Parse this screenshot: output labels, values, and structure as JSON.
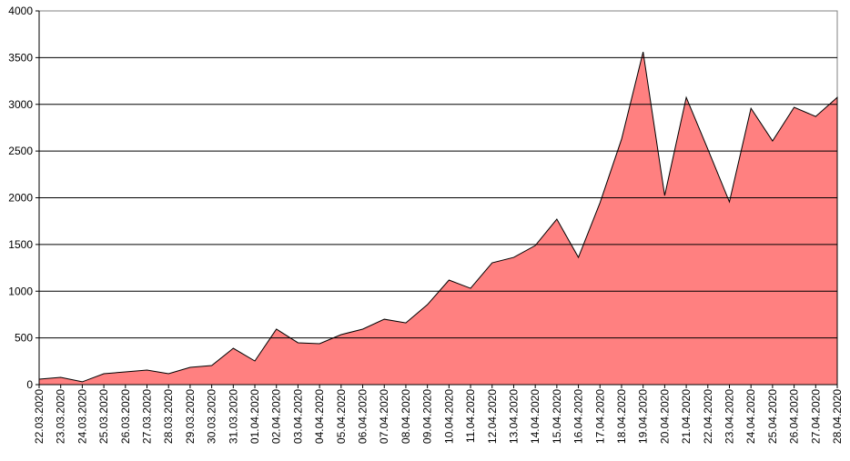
{
  "chart_data": {
    "type": "area",
    "categories": [
      "22.03.2020",
      "23.03.2020",
      "24.03.2020",
      "25.03.2020",
      "26.03.2020",
      "27.03.2020",
      "28.03.2020",
      "29.03.2020",
      "30.03.2020",
      "31.03.2020",
      "01.04.2020",
      "02.04.2020",
      "03.04.2020",
      "04.04.2020",
      "05.04.2020",
      "06.04.2020",
      "07.04.2020",
      "08.04.2020",
      "09.04.2020",
      "10.04.2020",
      "11.04.2020",
      "12.04.2020",
      "13.04.2020",
      "14.04.2020",
      "15.04.2020",
      "16.04.2020",
      "17.04.2020",
      "18.04.2020",
      "19.04.2020",
      "20.04.2020",
      "21.04.2020",
      "22.04.2020",
      "23.04.2020",
      "24.04.2020",
      "25.04.2020",
      "26.04.2020",
      "27.04.2020",
      "28.04.2020"
    ],
    "values": [
      58,
      78,
      30,
      117,
      136,
      156,
      117,
      185,
      204,
      389,
      253,
      594,
      448,
      438,
      535,
      594,
      700,
      661,
      856,
      1119,
      1031,
      1304,
      1362,
      1489,
      1771,
      1362,
      1946,
      2627,
      3561,
      2024,
      3074,
      2520,
      1956,
      2958,
      2608,
      2968,
      2870,
      3074
    ],
    "color": "#ff8080",
    "ylim": [
      0,
      4000
    ],
    "yticks": [
      0,
      500,
      1000,
      1500,
      2000,
      2500,
      3000,
      3500,
      4000
    ],
    "grid": true
  }
}
